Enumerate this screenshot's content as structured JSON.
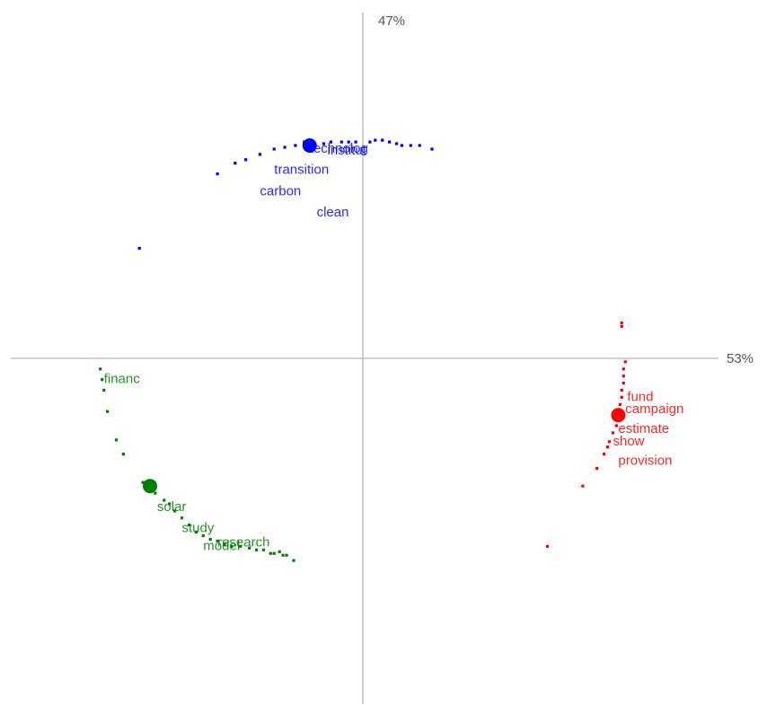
{
  "chart_data": {
    "type": "scatter",
    "title": "",
    "xlabel": "",
    "ylabel": "",
    "axis_percent": {
      "horizontal": "53%",
      "vertical": "47%"
    },
    "xlim": [
      -1.0,
      1.1
    ],
    "ylim": [
      -0.95,
      0.95
    ],
    "grid": false,
    "legend": "none",
    "series": [
      {
        "color": "#0000ff",
        "centroid": {
          "x": -0.15,
          "y": 0.6
        },
        "terms": [
          {
            "label": "technolog",
            "x": -0.15,
            "y": 0.58
          },
          {
            "label": "institut",
            "x": -0.1,
            "y": 0.575
          },
          {
            "label": "transition",
            "x": -0.25,
            "y": 0.52
          },
          {
            "label": "carbon",
            "x": -0.29,
            "y": 0.46
          },
          {
            "label": "clean",
            "x": -0.13,
            "y": 0.4
          }
        ],
        "points": [
          {
            "x": -0.63,
            "y": 0.31
          },
          {
            "x": -0.41,
            "y": 0.52
          },
          {
            "x": -0.36,
            "y": 0.55
          },
          {
            "x": -0.33,
            "y": 0.56
          },
          {
            "x": -0.29,
            "y": 0.575
          },
          {
            "x": -0.25,
            "y": 0.59
          },
          {
            "x": -0.22,
            "y": 0.595
          },
          {
            "x": -0.19,
            "y": 0.6
          },
          {
            "x": -0.165,
            "y": 0.61
          },
          {
            "x": -0.135,
            "y": 0.6
          },
          {
            "x": -0.11,
            "y": 0.605
          },
          {
            "x": -0.09,
            "y": 0.61
          },
          {
            "x": -0.06,
            "y": 0.61
          },
          {
            "x": -0.04,
            "y": 0.61
          },
          {
            "x": -0.02,
            "y": 0.61
          },
          {
            "x": 0.02,
            "y": 0.61
          },
          {
            "x": 0.035,
            "y": 0.615
          },
          {
            "x": 0.055,
            "y": 0.615
          },
          {
            "x": 0.075,
            "y": 0.61
          },
          {
            "x": 0.095,
            "y": 0.605
          },
          {
            "x": 0.11,
            "y": 0.6
          },
          {
            "x": 0.135,
            "y": 0.6
          },
          {
            "x": 0.16,
            "y": 0.6
          },
          {
            "x": 0.195,
            "y": 0.59
          }
        ]
      },
      {
        "color": "#ff0000",
        "centroid": {
          "x": 0.72,
          "y": -0.16
        },
        "terms": [
          {
            "label": "fund",
            "x": 0.745,
            "y": -0.12
          },
          {
            "label": "campaign",
            "x": 0.74,
            "y": -0.155
          },
          {
            "label": "estimate",
            "x": 0.72,
            "y": -0.21
          },
          {
            "label": "show",
            "x": 0.705,
            "y": -0.245
          },
          {
            "label": "provision",
            "x": 0.72,
            "y": -0.3
          }
        ],
        "points": [
          {
            "x": 0.73,
            "y": 0.1
          },
          {
            "x": 0.73,
            "y": 0.09
          },
          {
            "x": 0.74,
            "y": -0.01
          },
          {
            "x": 0.735,
            "y": -0.03
          },
          {
            "x": 0.735,
            "y": -0.05
          },
          {
            "x": 0.735,
            "y": -0.07
          },
          {
            "x": 0.73,
            "y": -0.09
          },
          {
            "x": 0.73,
            "y": -0.11
          },
          {
            "x": 0.725,
            "y": -0.13
          },
          {
            "x": 0.72,
            "y": -0.15
          },
          {
            "x": 0.72,
            "y": -0.17
          },
          {
            "x": 0.715,
            "y": -0.19
          },
          {
            "x": 0.705,
            "y": -0.21
          },
          {
            "x": 0.695,
            "y": -0.235
          },
          {
            "x": 0.69,
            "y": -0.25
          },
          {
            "x": 0.68,
            "y": -0.27
          },
          {
            "x": 0.66,
            "y": -0.31
          },
          {
            "x": 0.62,
            "y": -0.36
          },
          {
            "x": 0.52,
            "y": -0.53
          }
        ]
      },
      {
        "color": "#008000",
        "centroid": {
          "x": -0.6,
          "y": -0.36
        },
        "terms": [
          {
            "label": "financ",
            "x": -0.73,
            "y": -0.07
          },
          {
            "label": "solar",
            "x": -0.58,
            "y": -0.43
          },
          {
            "label": "study",
            "x": -0.51,
            "y": -0.49
          },
          {
            "label": "research",
            "x": -0.41,
            "y": -0.53
          },
          {
            "label": "model",
            "x": -0.45,
            "y": -0.54
          }
        ],
        "points": [
          {
            "x": -0.74,
            "y": -0.03
          },
          {
            "x": -0.735,
            "y": -0.06
          },
          {
            "x": -0.73,
            "y": -0.09
          },
          {
            "x": -0.72,
            "y": -0.15
          },
          {
            "x": -0.695,
            "y": -0.23
          },
          {
            "x": -0.675,
            "y": -0.27
          },
          {
            "x": -0.62,
            "y": -0.35
          },
          {
            "x": -0.585,
            "y": -0.38
          },
          {
            "x": -0.56,
            "y": -0.4
          },
          {
            "x": -0.545,
            "y": -0.41
          },
          {
            "x": -0.53,
            "y": -0.43
          },
          {
            "x": -0.51,
            "y": -0.45
          },
          {
            "x": -0.49,
            "y": -0.47
          },
          {
            "x": -0.47,
            "y": -0.49
          },
          {
            "x": -0.45,
            "y": -0.5
          },
          {
            "x": -0.43,
            "y": -0.51
          },
          {
            "x": -0.41,
            "y": -0.515
          },
          {
            "x": -0.39,
            "y": -0.525
          },
          {
            "x": -0.37,
            "y": -0.53
          },
          {
            "x": -0.345,
            "y": -0.53
          },
          {
            "x": -0.32,
            "y": -0.535
          },
          {
            "x": -0.3,
            "y": -0.54
          },
          {
            "x": -0.28,
            "y": -0.54
          },
          {
            "x": -0.26,
            "y": -0.55
          },
          {
            "x": -0.25,
            "y": -0.55
          },
          {
            "x": -0.235,
            "y": -0.545
          },
          {
            "x": -0.225,
            "y": -0.555
          },
          {
            "x": -0.215,
            "y": -0.555
          },
          {
            "x": -0.195,
            "y": -0.57
          }
        ]
      }
    ]
  }
}
